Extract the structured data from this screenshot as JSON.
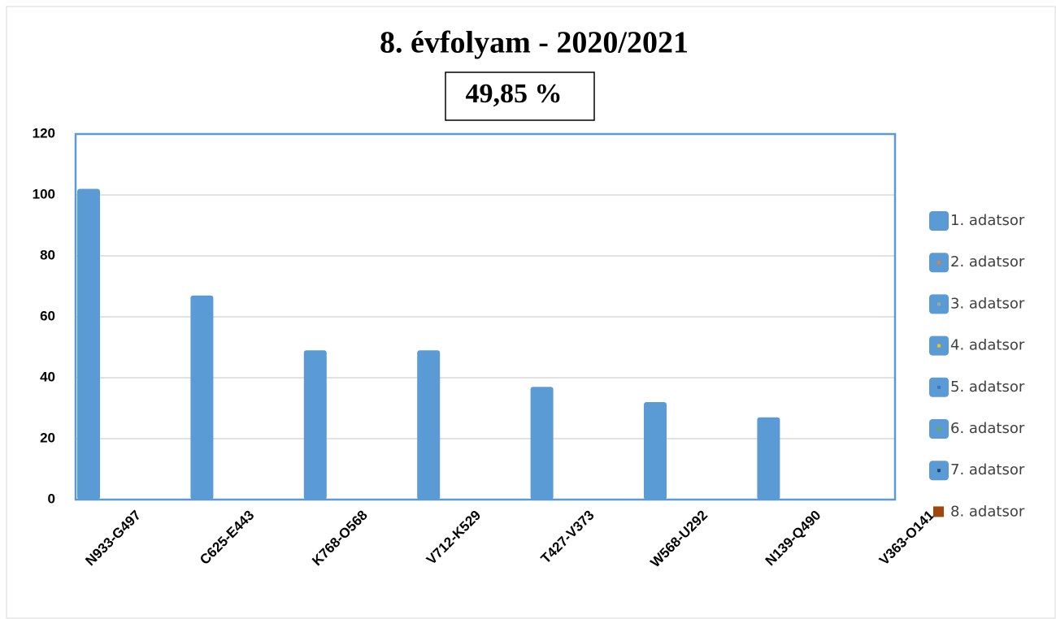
{
  "chart_data": {
    "type": "bar",
    "title": "8. évfolyam - 2020/2021",
    "annotation": "49,85 %",
    "categories": [
      "N933-G497",
      "C625-E443",
      "K768-O568",
      "V712-K529",
      "T427-V373",
      "W568-U292",
      "N139-Q490",
      "V363-O141"
    ],
    "series": [
      {
        "name": "1. adatsor",
        "color": "#5b9bd5",
        "values": [
          102,
          67,
          49,
          49,
          37,
          32,
          27,
          0
        ]
      },
      {
        "name": "2. adatsor",
        "color": "#ed7d31"
      },
      {
        "name": "3. adatsor",
        "color": "#a5a5a5"
      },
      {
        "name": "4. adatsor",
        "color": "#ffc000"
      },
      {
        "name": "5. adatsor",
        "color": "#4472c4"
      },
      {
        "name": "6. adatsor",
        "color": "#70ad47"
      },
      {
        "name": "7. adatsor",
        "color": "#264478"
      },
      {
        "name": "8. adatsor",
        "color": "#9e480e"
      }
    ],
    "ylim": [
      0,
      120
    ],
    "yticks": [
      0,
      20,
      40,
      60,
      80,
      100,
      120
    ],
    "grid": true,
    "legend": "right"
  }
}
